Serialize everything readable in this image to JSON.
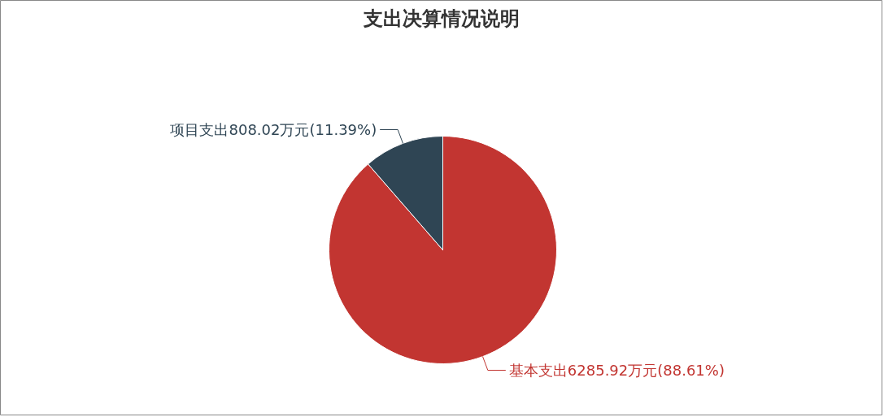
{
  "chart_data": {
    "type": "pie",
    "title": "支出决算情况说明",
    "categories": [
      "基本支出",
      "项目支出"
    ],
    "values": [
      6285.92,
      808.02
    ],
    "colors": [
      "#c23531",
      "#2f4554"
    ],
    "value_labels": [
      "6285.92万元(88.61%)",
      "808.02万元(11.39%)"
    ]
  }
}
